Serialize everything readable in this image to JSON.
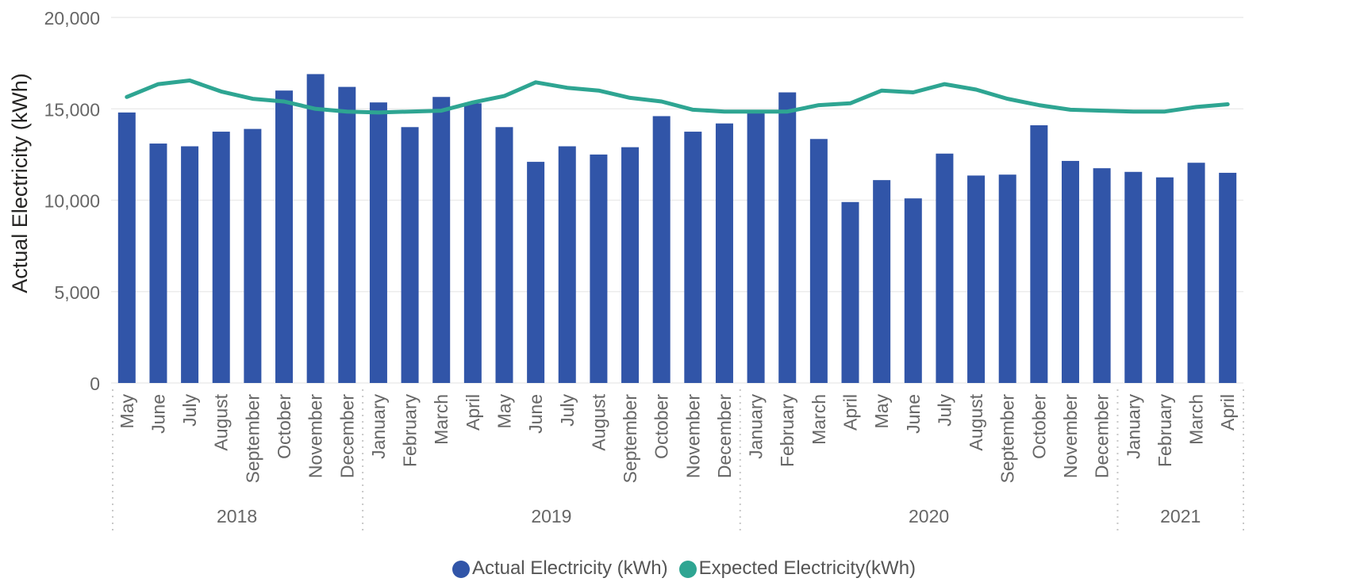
{
  "colors": {
    "actual_bar": "#3155A8",
    "expected_line": "#2EA592",
    "grid": "#ECECEC",
    "axis_text": "#666666",
    "title_text": "#252423"
  },
  "chart_data": {
    "type": "bar",
    "ylabel": "Actual Electricity (kWh)",
    "ylim": [
      0,
      20000
    ],
    "y_ticks": [
      0,
      5000,
      10000,
      15000,
      20000
    ],
    "y_tick_labels": [
      "0",
      "5,000",
      "10,000",
      "15,000",
      "20,000"
    ],
    "grid": true,
    "legend_placement": "bottom-center",
    "categories": [
      "May",
      "June",
      "July",
      "August",
      "September",
      "October",
      "November",
      "December",
      "January",
      "February",
      "March",
      "April",
      "May",
      "June",
      "July",
      "August",
      "September",
      "October",
      "November",
      "December",
      "January",
      "February",
      "March",
      "April",
      "May",
      "June",
      "July",
      "August",
      "September",
      "October",
      "November",
      "December",
      "January",
      "February",
      "March",
      "April"
    ],
    "year_groups": [
      {
        "label": "2018",
        "count": 8
      },
      {
        "label": "2019",
        "count": 12
      },
      {
        "label": "2020",
        "count": 12
      },
      {
        "label": "2021",
        "count": 4
      }
    ],
    "series": [
      {
        "name": "Actual Electricity (kWh)",
        "type": "bar",
        "values": [
          14800,
          13100,
          12950,
          13750,
          13900,
          16000,
          16900,
          16200,
          15350,
          14000,
          15650,
          15300,
          14000,
          12100,
          12950,
          12500,
          12900,
          14600,
          13750,
          14200,
          14900,
          15900,
          13350,
          9900,
          11100,
          10100,
          12550,
          11350,
          11400,
          14100,
          12150,
          11750,
          11550,
          11250,
          12050,
          11500
        ]
      },
      {
        "name": "Expected Electricity(kWh)",
        "type": "line",
        "values": [
          15650,
          16350,
          16550,
          15950,
          15550,
          15400,
          15000,
          14850,
          14800,
          14850,
          14900,
          15350,
          15700,
          16450,
          16150,
          16000,
          15600,
          15400,
          14950,
          14850,
          14850,
          14850,
          15200,
          15300,
          16000,
          15900,
          16350,
          16050,
          15550,
          15200,
          14950,
          14900,
          14850,
          14850,
          15100,
          15250
        ]
      }
    ]
  },
  "legend": {
    "actual_label": "Actual Electricity (kWh)",
    "expected_label": "Expected Electricity(kWh)"
  }
}
